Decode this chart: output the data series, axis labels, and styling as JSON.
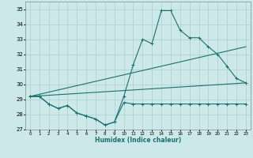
{
  "xlabel": "Humidex (Indice chaleur)",
  "xlim": [
    -0.5,
    23.5
  ],
  "ylim": [
    27,
    35.5
  ],
  "yticks": [
    27,
    28,
    29,
    30,
    31,
    32,
    33,
    34,
    35
  ],
  "xticks": [
    0,
    1,
    2,
    3,
    4,
    5,
    6,
    7,
    8,
    9,
    10,
    11,
    12,
    13,
    14,
    15,
    16,
    17,
    18,
    19,
    20,
    21,
    22,
    23
  ],
  "bg_color": "#cce8e8",
  "grid_color": "#aacfcf",
  "line_color": "#1a7070",
  "series": [
    {
      "x": [
        0,
        1,
        2,
        3,
        4,
        5,
        6,
        7,
        8,
        9,
        10,
        11,
        12,
        13,
        14,
        15,
        16,
        17,
        18,
        19,
        20,
        21,
        22,
        23
      ],
      "y": [
        29.2,
        29.2,
        28.7,
        28.4,
        28.6,
        28.1,
        27.9,
        27.7,
        27.3,
        27.5,
        29.2,
        31.3,
        33.0,
        32.7,
        34.9,
        34.9,
        33.6,
        33.1,
        33.1,
        32.5,
        32.0,
        31.2,
        30.4,
        30.1
      ],
      "marker": "+"
    },
    {
      "x": [
        0,
        1,
        2,
        3,
        4,
        5,
        6,
        7,
        8,
        9,
        10,
        11,
        12,
        13,
        14,
        15,
        16,
        17,
        18,
        19,
        20,
        21,
        22,
        23
      ],
      "y": [
        29.2,
        29.2,
        28.7,
        28.4,
        28.6,
        28.1,
        27.9,
        27.7,
        27.3,
        27.5,
        28.8,
        28.7,
        28.7,
        28.7,
        28.7,
        28.7,
        28.7,
        28.7,
        28.7,
        28.7,
        28.7,
        28.7,
        28.7,
        28.7
      ],
      "marker": "+"
    },
    {
      "x": [
        0,
        23
      ],
      "y": [
        29.2,
        30.1
      ],
      "marker": null
    },
    {
      "x": [
        0,
        23
      ],
      "y": [
        29.2,
        32.5
      ],
      "marker": null
    }
  ]
}
